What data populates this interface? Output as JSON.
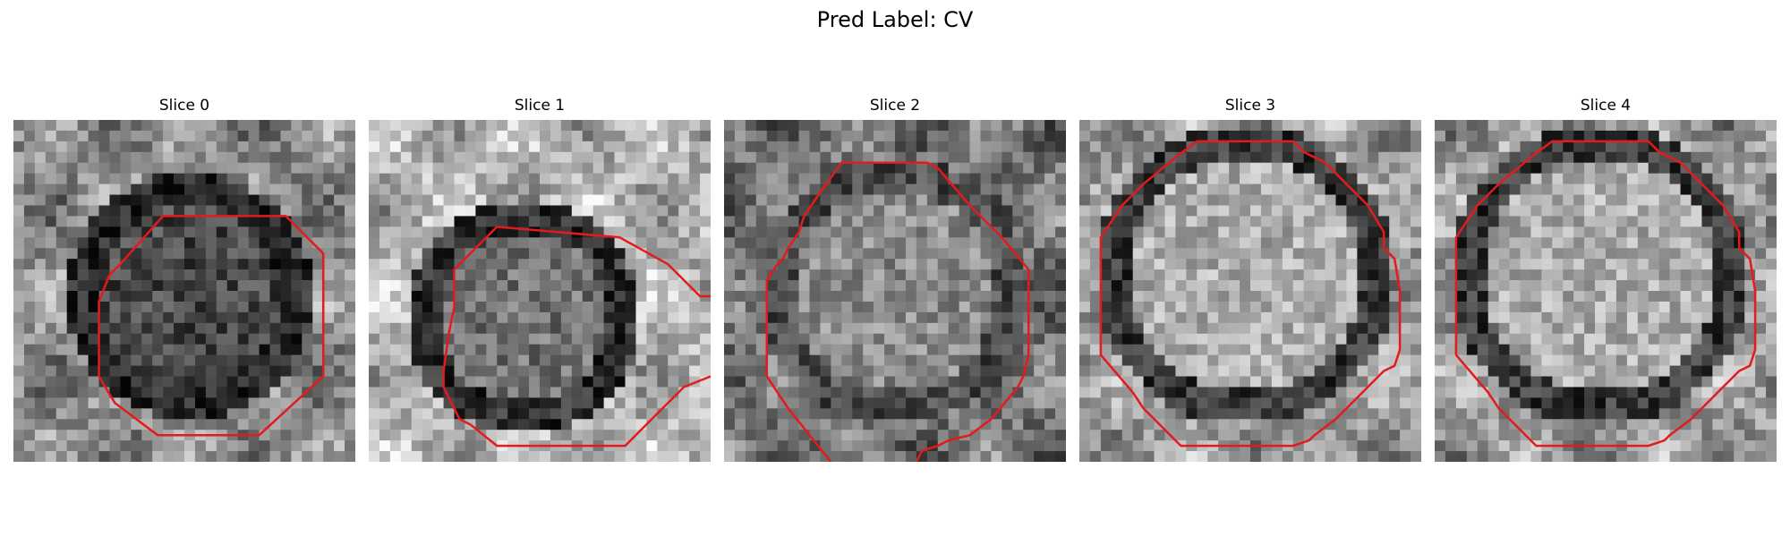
{
  "figure": {
    "title": "Pred Label: CV"
  },
  "slices": [
    {
      "title": "Slice 0"
    },
    {
      "title": "Slice 1"
    },
    {
      "title": "Slice 2"
    },
    {
      "title": "Slice 3"
    },
    {
      "title": "Slice 4"
    }
  ],
  "contour_color": "#e41a1c"
}
